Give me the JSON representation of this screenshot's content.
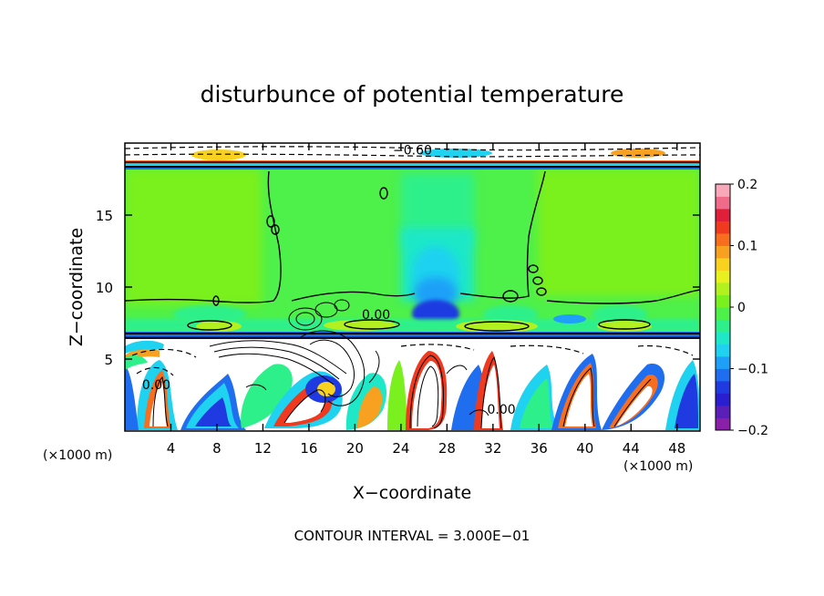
{
  "chart_data": {
    "type": "heatmap",
    "title": "disturbunce of potential temperature",
    "xlabel": "X−coordinate",
    "ylabel": "Z−coordinate",
    "x_unit_left": "(×1000 m)",
    "x_unit_right": "(×1000 m)",
    "footer": "CONTOUR INTERVAL = 3.000E−01",
    "xlim": [
      0,
      50
    ],
    "ylim": [
      0,
      20
    ],
    "x_ticks": [
      4,
      8,
      12,
      16,
      20,
      24,
      28,
      32,
      36,
      40,
      44,
      48
    ],
    "y_ticks": [
      5,
      10,
      15
    ],
    "colorbar": {
      "range": [
        -0.2,
        0.2
      ],
      "tick_labels": [
        {
          "value": 0.2,
          "label": "0.2"
        },
        {
          "value": 0.1,
          "label": "0.1"
        },
        {
          "value": 0.0,
          "label": "0"
        },
        {
          "value": -0.1,
          "label": "−0.1"
        },
        {
          "value": -0.2,
          "label": "−0.2"
        }
      ],
      "colors": [
        "#8a1fa8",
        "#5a1fb8",
        "#2a1fd0",
        "#1f3ae0",
        "#1f6ef0",
        "#1fa0f8",
        "#1fd2f0",
        "#1fe8c8",
        "#2ef08a",
        "#4ef04a",
        "#7af01f",
        "#b2f01f",
        "#e8f01f",
        "#f8d21f",
        "#f8a01f",
        "#f86e1f",
        "#f03a1f",
        "#e01f3a",
        "#f06a8a",
        "#f8a8b8"
      ]
    },
    "contour_labels": [
      {
        "x": 23.3,
        "y": 19.2,
        "text": "−0.60"
      },
      {
        "x": 20.6,
        "y": 7.8,
        "text": "0.00"
      },
      {
        "x": 1.5,
        "y": 2.9,
        "text": "0.00"
      },
      {
        "x": 31.5,
        "y": 1.2,
        "text": "0.00"
      }
    ]
  }
}
